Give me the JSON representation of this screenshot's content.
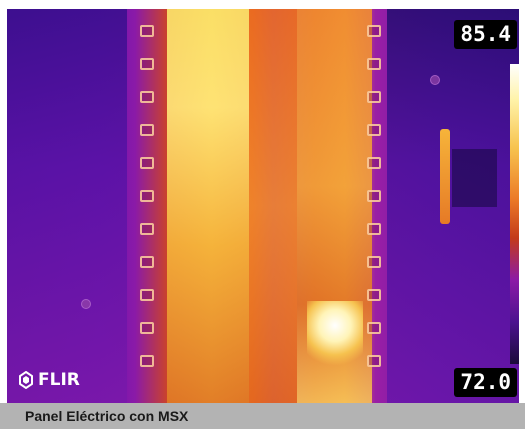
{
  "thermal_image": {
    "max_temperature": "85.4",
    "min_temperature": "72.0",
    "brand": "FLIR",
    "palette": "iron",
    "colors": {
      "hot": "#ffffff",
      "warm": "#f6b12b",
      "mid": "#d2471d",
      "cool": "#8a1aa8",
      "cold": "#1b0a3a"
    }
  },
  "caption": {
    "text": "Panel Eléctrico con MSX"
  }
}
